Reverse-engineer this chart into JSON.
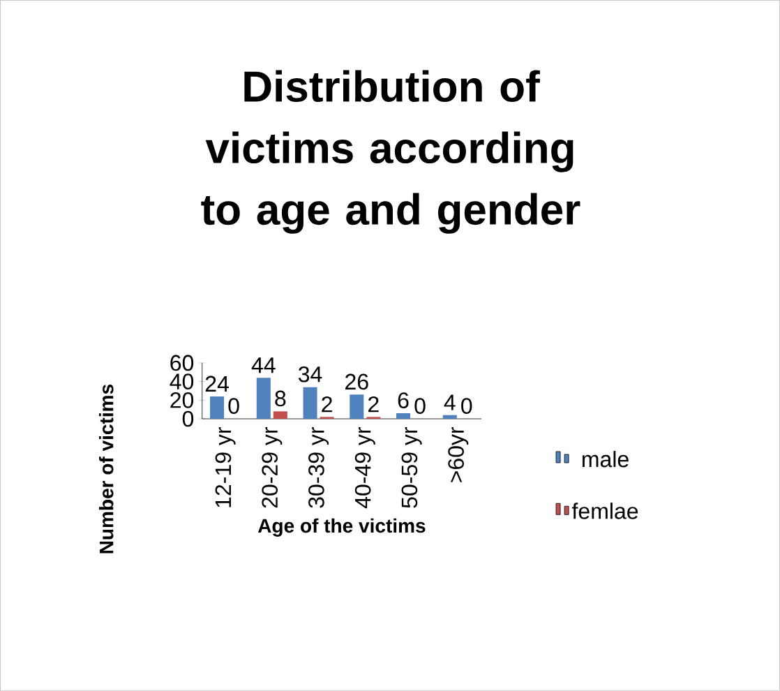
{
  "chart_data": {
    "type": "bar",
    "title": "Distribution of victims according to age and gender",
    "xlabel": "Age of the victims",
    "ylabel": "Number of victims",
    "categories": [
      "12-19 yr",
      "20-29 yr",
      "30-39 yr",
      "40-49 yr",
      "50-59 yr",
      ">60yr"
    ],
    "series": [
      {
        "name": "male",
        "color": "#4f81bd",
        "values": [
          24,
          44,
          34,
          26,
          6,
          4
        ]
      },
      {
        "name": "femlae",
        "color": "#c0504d",
        "values": [
          0,
          8,
          2,
          2,
          0,
          0
        ]
      }
    ],
    "ylim": [
      0,
      60
    ],
    "yticks": [
      0,
      20,
      40,
      60
    ],
    "grid": false,
    "legend": "right",
    "data_labels": true
  }
}
